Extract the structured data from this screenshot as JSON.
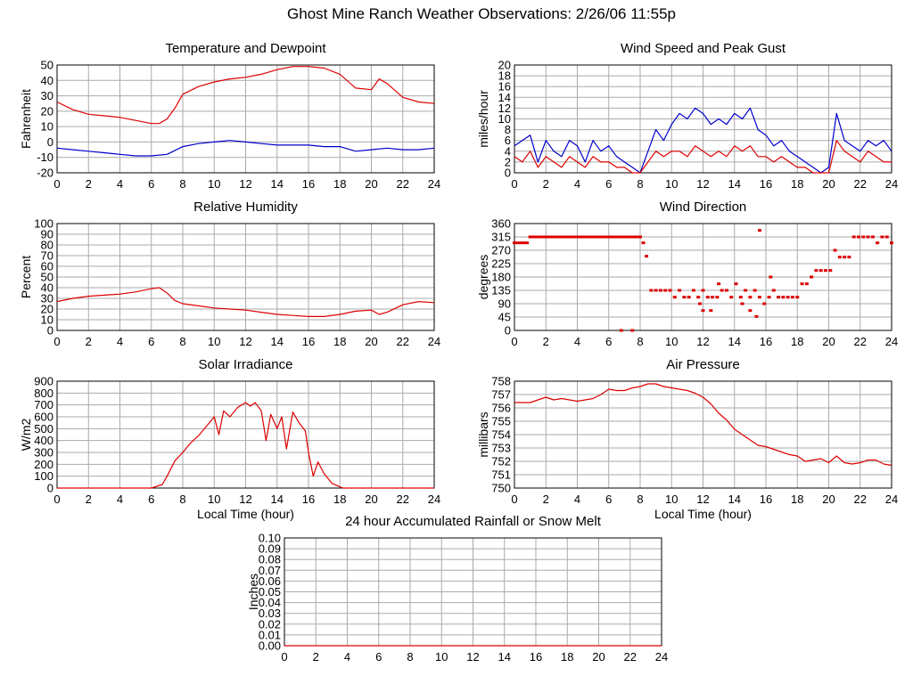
{
  "page_title": "Ghost Mine Ranch Weather Observations: 2/26/06 11:55p",
  "colors": {
    "red": "#dd0000",
    "blue": "#0000cc",
    "grid": "#aaaaaa",
    "axis": "#000000"
  },
  "chart_data": [
    {
      "id": "temp",
      "type": "line",
      "title": "Temperature and Dewpoint",
      "xlabel": "",
      "ylabel": "Fahrenheit",
      "xlim": [
        0,
        24
      ],
      "ylim": [
        -20,
        50
      ],
      "xticks": [
        0,
        2,
        4,
        6,
        8,
        10,
        12,
        14,
        16,
        18,
        20,
        22,
        24
      ],
      "yticks": [
        -20,
        -10,
        0,
        10,
        20,
        30,
        40,
        50
      ],
      "ytick_labels": [
        "-20",
        "-10",
        "0",
        "10",
        "20",
        "30",
        "40",
        "50"
      ],
      "series": [
        {
          "color": "#dd0000",
          "x": [
            0,
            1,
            2,
            3,
            4,
            5,
            6,
            6.5,
            7,
            7.5,
            8,
            9,
            10,
            11,
            12,
            13,
            14,
            15,
            16,
            17,
            18,
            19,
            20,
            20.5,
            21,
            22,
            23,
            24
          ],
          "y": [
            26,
            21,
            18,
            17,
            16,
            14,
            12,
            12,
            15,
            22,
            31,
            36,
            39,
            41,
            42,
            44,
            47,
            49,
            49,
            48,
            44,
            35,
            34,
            41,
            38,
            29,
            26,
            25
          ]
        },
        {
          "color": "#0000cc",
          "x": [
            0,
            1,
            2,
            3,
            4,
            5,
            6,
            7,
            8,
            9,
            10,
            11,
            12,
            13,
            14,
            15,
            16,
            17,
            18,
            19,
            20,
            21,
            22,
            23,
            24
          ],
          "y": [
            -4,
            -5,
            -6,
            -7,
            -8,
            -9,
            -9,
            -8,
            -3,
            -1,
            0,
            1,
            0,
            -1,
            -2,
            -2,
            -2,
            -3,
            -3,
            -6,
            -5,
            -4,
            -5,
            -5,
            -4
          ]
        }
      ]
    },
    {
      "id": "wind",
      "type": "line",
      "title": "Wind Speed and Peak Gust",
      "xlabel": "",
      "ylabel": "miles/hour",
      "xlim": [
        0,
        24
      ],
      "ylim": [
        0,
        20
      ],
      "xticks": [
        0,
        2,
        4,
        6,
        8,
        10,
        12,
        14,
        16,
        18,
        20,
        22,
        24
      ],
      "yticks": [
        0,
        2,
        4,
        6,
        8,
        10,
        12,
        14,
        16,
        18,
        20
      ],
      "ytick_labels": [
        "0",
        "2",
        "4",
        "6",
        "8",
        "10",
        "12",
        "14",
        "16",
        "18",
        "20"
      ],
      "series": [
        {
          "color": "#0000cc",
          "x": [
            0,
            0.5,
            1,
            1.5,
            2,
            2.5,
            3,
            3.5,
            4,
            4.5,
            5,
            5.5,
            6,
            6.5,
            7,
            7.5,
            8,
            8.5,
            9,
            9.5,
            10,
            10.5,
            11,
            11.5,
            12,
            12.5,
            13,
            13.5,
            14,
            14.5,
            15,
            15.5,
            16,
            16.5,
            17,
            17.5,
            18,
            18.5,
            19,
            19.5,
            20,
            20.5,
            21,
            21.5,
            22,
            22.5,
            23,
            23.5,
            24
          ],
          "y": [
            5,
            6,
            7,
            2,
            6,
            4,
            3,
            6,
            5,
            2,
            6,
            4,
            5,
            3,
            2,
            1,
            0,
            4,
            8,
            6,
            9,
            11,
            10,
            12,
            11,
            9,
            10,
            9,
            11,
            10,
            12,
            8,
            7,
            5,
            6,
            4,
            3,
            2,
            1,
            0,
            1,
            11,
            6,
            5,
            4,
            6,
            5,
            6,
            4
          ]
        },
        {
          "color": "#dd0000",
          "x": [
            0,
            0.5,
            1,
            1.5,
            2,
            2.5,
            3,
            3.5,
            4,
            4.5,
            5,
            5.5,
            6,
            6.5,
            7,
            7.5,
            8,
            8.5,
            9,
            9.5,
            10,
            10.5,
            11,
            11.5,
            12,
            12.5,
            13,
            13.5,
            14,
            14.5,
            15,
            15.5,
            16,
            16.5,
            17,
            17.5,
            18,
            18.5,
            19,
            19.5,
            20,
            20.5,
            21,
            21.5,
            22,
            22.5,
            23,
            23.5,
            24
          ],
          "y": [
            3,
            2,
            4,
            1,
            3,
            2,
            1,
            3,
            2,
            1,
            3,
            2,
            2,
            1,
            1,
            0,
            0,
            2,
            4,
            3,
            4,
            4,
            3,
            5,
            4,
            3,
            4,
            3,
            5,
            4,
            5,
            3,
            3,
            2,
            3,
            2,
            1,
            1,
            0,
            0,
            0,
            6,
            4,
            3,
            2,
            4,
            3,
            2,
            2
          ]
        }
      ]
    },
    {
      "id": "rh",
      "type": "line",
      "title": "Relative Humidity",
      "xlabel": "",
      "ylabel": "Percent",
      "xlim": [
        0,
        24
      ],
      "ylim": [
        0,
        100
      ],
      "xticks": [
        0,
        2,
        4,
        6,
        8,
        10,
        12,
        14,
        16,
        18,
        20,
        22,
        24
      ],
      "yticks": [
        0,
        10,
        20,
        30,
        40,
        50,
        60,
        70,
        80,
        90,
        100
      ],
      "ytick_labels": [
        "0",
        "10",
        "20",
        "30",
        "40",
        "50",
        "60",
        "70",
        "80",
        "90",
        "100"
      ],
      "series": [
        {
          "color": "#dd0000",
          "x": [
            0,
            1,
            2,
            3,
            4,
            5,
            6,
            6.5,
            7,
            7.5,
            8,
            9,
            10,
            11,
            12,
            13,
            14,
            15,
            16,
            17,
            18,
            19,
            20,
            20.5,
            21,
            22,
            23,
            24
          ],
          "y": [
            27,
            30,
            32,
            33,
            34,
            36,
            39,
            40,
            35,
            28,
            25,
            23,
            21,
            20,
            19,
            17,
            15,
            14,
            13,
            13,
            15,
            18,
            19,
            15,
            17,
            24,
            27,
            26
          ]
        }
      ]
    },
    {
      "id": "wdir",
      "type": "scatter",
      "title": "Wind Direction",
      "xlabel": "",
      "ylabel": "degrees",
      "xlim": [
        0,
        24
      ],
      "ylim": [
        0,
        360
      ],
      "xticks": [
        0,
        2,
        4,
        6,
        8,
        10,
        12,
        14,
        16,
        18,
        20,
        22,
        24
      ],
      "yticks": [
        0,
        45,
        90,
        135,
        180,
        225,
        270,
        315,
        360
      ],
      "ytick_labels": [
        "0",
        "45",
        "90",
        "135",
        "180",
        "225",
        "270",
        "315",
        "360"
      ],
      "series": [
        {
          "color": "#dd0000",
          "x": [
            0,
            0.2,
            0.4,
            0.6,
            0.8,
            1.0,
            1.2,
            1.4,
            1.6,
            1.8,
            2.0,
            2.2,
            2.4,
            2.6,
            2.8,
            3.0,
            3.2,
            3.4,
            3.6,
            3.8,
            4.0,
            4.2,
            4.4,
            4.6,
            4.8,
            5.0,
            5.2,
            5.4,
            5.6,
            5.8,
            6.0,
            6.2,
            6.4,
            6.6,
            6.8,
            7.0,
            7.2,
            7.4,
            7.6,
            7.8,
            8.0,
            8.2,
            8.4,
            8.7,
            9.0,
            9.3,
            9.6,
            9.9,
            10.2,
            10.5,
            10.8,
            11.1,
            11.4,
            11.7,
            12.0,
            12.3,
            12.6,
            12.9,
            13.2,
            13.5,
            13.8,
            14.1,
            14.4,
            14.7,
            15.0,
            15.3,
            15.6,
            15.9,
            16.2,
            16.5,
            16.8,
            17.1,
            17.4,
            17.7,
            18.0,
            18.3,
            18.6,
            18.9,
            19.2,
            19.5,
            19.8,
            20.1,
            20.4,
            20.7,
            21.0,
            21.3,
            21.6,
            21.9,
            22.2,
            22.5,
            22.8,
            23.1,
            23.4,
            23.7,
            24.0,
            12.0,
            12.5,
            14.5,
            15.0,
            15.4,
            15.6,
            13.0,
            11.8,
            6.8,
            7.5,
            16.3
          ],
          "y": [
            295,
            295,
            295,
            295,
            295,
            315,
            315,
            315,
            315,
            315,
            315,
            315,
            315,
            315,
            315,
            315,
            315,
            315,
            315,
            315,
            315,
            315,
            315,
            315,
            315,
            315,
            315,
            315,
            315,
            315,
            315,
            315,
            315,
            315,
            315,
            315,
            315,
            315,
            315,
            315,
            315,
            295,
            250,
            135,
            135,
            135,
            135,
            135,
            112,
            135,
            112,
            112,
            135,
            112,
            135,
            112,
            112,
            112,
            135,
            135,
            112,
            157,
            112,
            135,
            112,
            135,
            112,
            90,
            112,
            135,
            112,
            112,
            112,
            112,
            112,
            157,
            157,
            180,
            202,
            202,
            202,
            202,
            270,
            247,
            247,
            247,
            315,
            315,
            315,
            315,
            315,
            295,
            315,
            315,
            295,
            67,
            67,
            90,
            67,
            47,
            337,
            157,
            90,
            0,
            0,
            180
          ]
        }
      ]
    },
    {
      "id": "solar",
      "type": "line",
      "title": "Solar Irradiance",
      "xlabel": "Local Time (hour)",
      "ylabel": "W/m2",
      "xlim": [
        0,
        24
      ],
      "ylim": [
        0,
        900
      ],
      "xticks": [
        0,
        2,
        4,
        6,
        8,
        10,
        12,
        14,
        16,
        18,
        20,
        22,
        24
      ],
      "yticks": [
        0,
        100,
        200,
        300,
        400,
        500,
        600,
        700,
        800,
        900
      ],
      "ytick_labels": [
        "0",
        "100",
        "200",
        "300",
        "400",
        "500",
        "600",
        "700",
        "800",
        "900"
      ],
      "series": [
        {
          "color": "#dd0000",
          "x": [
            0,
            6,
            6.7,
            7,
            7.5,
            8,
            8.5,
            9,
            9.5,
            10,
            10.3,
            10.6,
            11,
            11.5,
            12,
            12.3,
            12.6,
            13,
            13.3,
            13.6,
            14,
            14.3,
            14.6,
            15,
            15.4,
            15.8,
            16,
            16.3,
            16.6,
            17,
            17.5,
            18,
            18.2,
            24
          ],
          "y": [
            0,
            0,
            30,
            100,
            230,
            300,
            380,
            440,
            520,
            600,
            450,
            650,
            600,
            680,
            720,
            690,
            720,
            650,
            400,
            620,
            500,
            600,
            330,
            640,
            550,
            480,
            300,
            100,
            220,
            120,
            40,
            10,
            0,
            0
          ]
        }
      ]
    },
    {
      "id": "pressure",
      "type": "line",
      "title": "Air Pressure",
      "xlabel": "Local Time (hour)",
      "ylabel": "millibars",
      "xlim": [
        0,
        24
      ],
      "ylim": [
        750,
        758
      ],
      "xticks": [
        0,
        2,
        4,
        6,
        8,
        10,
        12,
        14,
        16,
        18,
        20,
        22,
        24
      ],
      "yticks": [
        750,
        751,
        752,
        753,
        754,
        755,
        756,
        757,
        758
      ],
      "ytick_labels": [
        "750",
        "751",
        "752",
        "753",
        "754",
        "755",
        "756",
        "757",
        "758"
      ],
      "series": [
        {
          "color": "#dd0000",
          "x": [
            0,
            1,
            1.5,
            2,
            2.5,
            3,
            4,
            5,
            5.5,
            6,
            6.5,
            7,
            7.5,
            8,
            8.5,
            9,
            9.5,
            10,
            10.5,
            11,
            11.5,
            12,
            12.5,
            13,
            13.5,
            14,
            14.5,
            15,
            15.5,
            16,
            16.5,
            17,
            17.5,
            18,
            18.5,
            19,
            19.5,
            20,
            20.5,
            21,
            21.5,
            22,
            22.5,
            23,
            23.5,
            24
          ],
          "y": [
            756.4,
            756.4,
            756.6,
            756.8,
            756.6,
            756.7,
            756.5,
            756.7,
            757.0,
            757.4,
            757.3,
            757.3,
            757.5,
            757.6,
            757.8,
            757.8,
            757.6,
            757.5,
            757.4,
            757.3,
            757.1,
            756.8,
            756.3,
            755.6,
            755.1,
            754.4,
            754.0,
            753.6,
            753.2,
            753.1,
            752.9,
            752.7,
            752.5,
            752.4,
            752.0,
            752.1,
            752.2,
            751.9,
            752.4,
            751.9,
            751.8,
            751.9,
            752.1,
            752.1,
            751.8,
            751.7
          ]
        }
      ]
    },
    {
      "id": "rain",
      "type": "line",
      "title": "24 hour Accumulated Rainfall or Snow Melt",
      "xlabel": "",
      "ylabel": "Inches",
      "xlim": [
        0,
        24
      ],
      "ylim": [
        0,
        0.1
      ],
      "xticks": [
        0,
        2,
        4,
        6,
        8,
        10,
        12,
        14,
        16,
        18,
        20,
        22,
        24
      ],
      "yticks": [
        0,
        0.01,
        0.02,
        0.03,
        0.04,
        0.05,
        0.06,
        0.07,
        0.08,
        0.09,
        0.1
      ],
      "ytick_labels": [
        "0.00",
        "0.01",
        "0.02",
        "0.03",
        "0.04",
        "0.05",
        "0.06",
        "0.07",
        "0.08",
        "0.09",
        "0.10"
      ],
      "series": [
        {
          "color": "#dd0000",
          "x": [
            0,
            24
          ],
          "y": [
            0,
            0
          ]
        }
      ]
    }
  ]
}
